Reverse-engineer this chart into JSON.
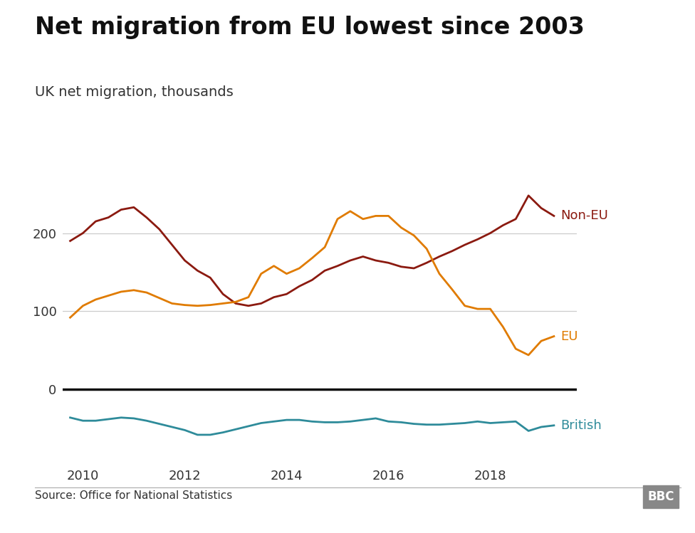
{
  "title": "Net migration from EU lowest since 2003",
  "subtitle": "UK net migration, thousands",
  "source": "Source: Office for National Statistics",
  "background_color": "#ffffff",
  "non_eu_color": "#8b1a10",
  "eu_color": "#e07b00",
  "british_color": "#2e8b9a",
  "zero_line_color": "#111111",
  "grid_color": "#cccccc",
  "non_eu": {
    "x": [
      2009.75,
      2010.0,
      2010.25,
      2010.5,
      2010.75,
      2011.0,
      2011.25,
      2011.5,
      2011.75,
      2012.0,
      2012.25,
      2012.5,
      2012.75,
      2013.0,
      2013.25,
      2013.5,
      2013.75,
      2014.0,
      2014.25,
      2014.5,
      2014.75,
      2015.0,
      2015.25,
      2015.5,
      2015.75,
      2016.0,
      2016.25,
      2016.5,
      2016.75,
      2017.0,
      2017.25,
      2017.5,
      2017.75,
      2018.0,
      2018.25,
      2018.5,
      2018.75,
      2019.0,
      2019.25
    ],
    "y": [
      190,
      200,
      215,
      220,
      230,
      233,
      220,
      205,
      185,
      165,
      152,
      143,
      122,
      110,
      107,
      110,
      118,
      122,
      132,
      140,
      152,
      158,
      165,
      170,
      165,
      162,
      157,
      155,
      162,
      170,
      177,
      185,
      192,
      200,
      210,
      218,
      248,
      232,
      222
    ]
  },
  "eu": {
    "x": [
      2009.75,
      2010.0,
      2010.25,
      2010.5,
      2010.75,
      2011.0,
      2011.25,
      2011.5,
      2011.75,
      2012.0,
      2012.25,
      2012.5,
      2012.75,
      2013.0,
      2013.25,
      2013.5,
      2013.75,
      2014.0,
      2014.25,
      2014.5,
      2014.75,
      2015.0,
      2015.25,
      2015.5,
      2015.75,
      2016.0,
      2016.25,
      2016.5,
      2016.75,
      2017.0,
      2017.25,
      2017.5,
      2017.75,
      2018.0,
      2018.25,
      2018.5,
      2018.75,
      2019.0,
      2019.25
    ],
    "y": [
      92,
      107,
      115,
      120,
      125,
      127,
      124,
      117,
      110,
      108,
      107,
      108,
      110,
      112,
      118,
      148,
      158,
      148,
      155,
      168,
      182,
      218,
      228,
      218,
      222,
      222,
      207,
      197,
      180,
      148,
      128,
      107,
      103,
      103,
      80,
      52,
      44,
      62,
      68
    ]
  },
  "british": {
    "x": [
      2009.75,
      2010.0,
      2010.25,
      2010.5,
      2010.75,
      2011.0,
      2011.25,
      2011.5,
      2011.75,
      2012.0,
      2012.25,
      2012.5,
      2012.75,
      2013.0,
      2013.25,
      2013.5,
      2013.75,
      2014.0,
      2014.25,
      2014.5,
      2014.75,
      2015.0,
      2015.25,
      2015.5,
      2015.75,
      2016.0,
      2016.25,
      2016.5,
      2016.75,
      2017.0,
      2017.25,
      2017.5,
      2017.75,
      2018.0,
      2018.25,
      2018.5,
      2018.75,
      2019.0,
      2019.25
    ],
    "y": [
      -36,
      -40,
      -40,
      -38,
      -36,
      -37,
      -40,
      -44,
      -48,
      -52,
      -58,
      -58,
      -55,
      -51,
      -47,
      -43,
      -41,
      -39,
      -39,
      -41,
      -42,
      -42,
      -41,
      -39,
      -37,
      -41,
      -42,
      -44,
      -45,
      -45,
      -44,
      -43,
      -41,
      -43,
      -42,
      -41,
      -53,
      -48,
      -46
    ]
  },
  "xlim": [
    2009.6,
    2019.7
  ],
  "ylim": [
    -95,
    280
  ],
  "yticks": [
    0,
    100,
    200
  ],
  "xticks": [
    2010,
    2012,
    2014,
    2016,
    2018
  ],
  "xticklabels": [
    "2010",
    "2012",
    "2014",
    "2016",
    "2018"
  ],
  "title_fontsize": 24,
  "subtitle_fontsize": 14,
  "tick_fontsize": 13,
  "label_fontsize": 13,
  "source_fontsize": 11
}
